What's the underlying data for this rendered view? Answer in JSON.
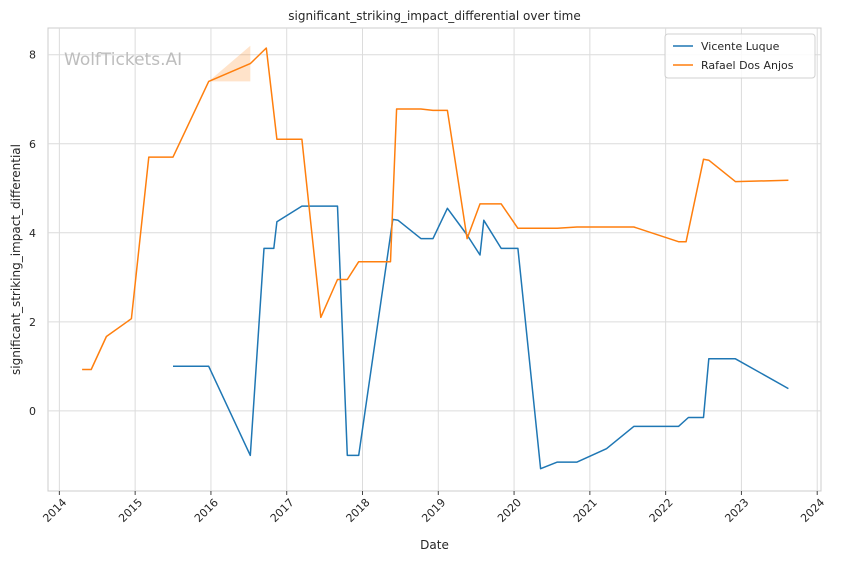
{
  "chart_data": {
    "type": "line",
    "title": "significant_striking_impact_differential over time",
    "xlabel": "Date",
    "ylabel": "significant_striking_impact_differential",
    "watermark": "WolfTickets.AI",
    "xlim": [
      2013.85,
      2024.05
    ],
    "ylim": [
      -1.8,
      8.6
    ],
    "x_ticks": [
      2014,
      2015,
      2016,
      2017,
      2018,
      2019,
      2020,
      2021,
      2022,
      2023,
      2024
    ],
    "x_tick_labels": [
      "2014",
      "2015",
      "2016",
      "2017",
      "2018",
      "2019",
      "2020",
      "2021",
      "2022",
      "2023",
      "2024"
    ],
    "y_ticks": [
      0,
      2,
      4,
      6,
      8
    ],
    "y_tick_labels": [
      "0",
      "2",
      "4",
      "6",
      "8"
    ],
    "grid": true,
    "legend_position": "top-right",
    "series": [
      {
        "name": "Vicente Luque",
        "color": "#1f77b4",
        "points": [
          [
            2015.5,
            1.0
          ],
          [
            2015.97,
            1.0
          ],
          [
            2016.52,
            -1.0
          ],
          [
            2016.7,
            3.65
          ],
          [
            2016.83,
            3.65
          ],
          [
            2016.87,
            4.25
          ],
          [
            2017.2,
            4.6
          ],
          [
            2017.67,
            4.6
          ],
          [
            2017.8,
            -1.0
          ],
          [
            2017.95,
            -1.0
          ],
          [
            2018.4,
            4.3
          ],
          [
            2018.47,
            4.28
          ],
          [
            2018.77,
            3.87
          ],
          [
            2018.93,
            3.87
          ],
          [
            2019.12,
            4.55
          ],
          [
            2019.38,
            3.95
          ],
          [
            2019.55,
            3.5
          ],
          [
            2019.6,
            4.28
          ],
          [
            2019.83,
            3.65
          ],
          [
            2020.05,
            3.65
          ],
          [
            2020.35,
            -1.3
          ],
          [
            2020.57,
            -1.15
          ],
          [
            2020.83,
            -1.15
          ],
          [
            2021.22,
            -0.85
          ],
          [
            2021.58,
            -0.35
          ],
          [
            2022.17,
            -0.35
          ],
          [
            2022.3,
            -0.15
          ],
          [
            2022.5,
            -0.15
          ],
          [
            2022.57,
            1.17
          ],
          [
            2022.92,
            1.17
          ],
          [
            2023.62,
            0.5
          ]
        ]
      },
      {
        "name": "Rafael Dos Anjos",
        "color": "#ff7f0e",
        "points": [
          [
            2014.3,
            0.93
          ],
          [
            2014.42,
            0.93
          ],
          [
            2014.62,
            1.67
          ],
          [
            2014.95,
            2.07
          ],
          [
            2015.18,
            5.7
          ],
          [
            2015.5,
            5.7
          ],
          [
            2015.97,
            7.4
          ],
          [
            2016.52,
            7.8
          ],
          [
            2016.73,
            8.15
          ],
          [
            2016.87,
            6.1
          ],
          [
            2017.2,
            6.1
          ],
          [
            2017.45,
            2.1
          ],
          [
            2017.67,
            2.95
          ],
          [
            2017.8,
            2.95
          ],
          [
            2017.95,
            3.35
          ],
          [
            2018.37,
            3.35
          ],
          [
            2018.45,
            6.78
          ],
          [
            2018.77,
            6.78
          ],
          [
            2018.93,
            6.75
          ],
          [
            2019.12,
            6.75
          ],
          [
            2019.38,
            3.87
          ],
          [
            2019.55,
            4.65
          ],
          [
            2019.83,
            4.65
          ],
          [
            2020.05,
            4.1
          ],
          [
            2020.57,
            4.1
          ],
          [
            2020.83,
            4.13
          ],
          [
            2021.58,
            4.13
          ],
          [
            2022.17,
            3.8
          ],
          [
            2022.27,
            3.8
          ],
          [
            2022.5,
            5.65
          ],
          [
            2022.57,
            5.63
          ],
          [
            2022.92,
            5.15
          ],
          [
            2023.62,
            5.18
          ]
        ]
      }
    ]
  }
}
